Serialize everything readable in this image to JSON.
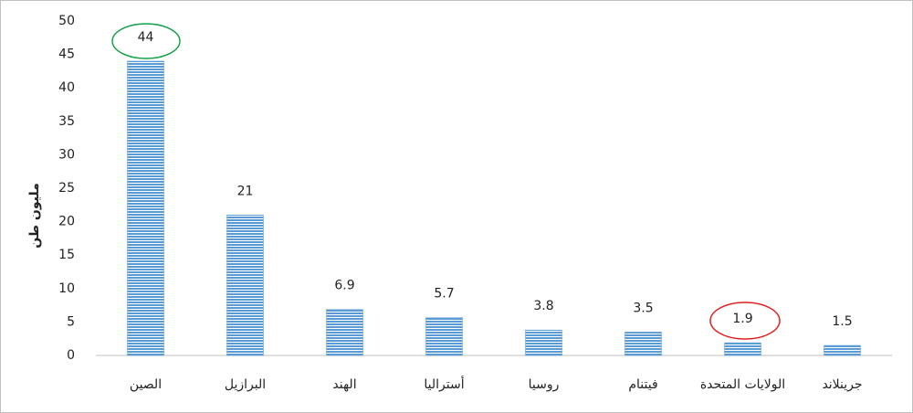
{
  "chart_data": {
    "type": "bar",
    "y_label": "مليون طن",
    "categories": [
      "الصين",
      "البرازيل",
      "الهند",
      "أستراليا",
      "روسيا",
      "فيتنام",
      "الولايات المتحدة",
      "جرينلاند"
    ],
    "values": [
      44,
      21,
      6.9,
      5.7,
      3.8,
      3.5,
      1.9,
      1.5
    ],
    "color": "#5b9bd5",
    "ylim": [
      0,
      50
    ],
    "yticks": [
      0,
      5,
      10,
      15,
      20,
      25,
      30,
      35,
      40,
      45,
      50
    ],
    "grid": false
  }
}
